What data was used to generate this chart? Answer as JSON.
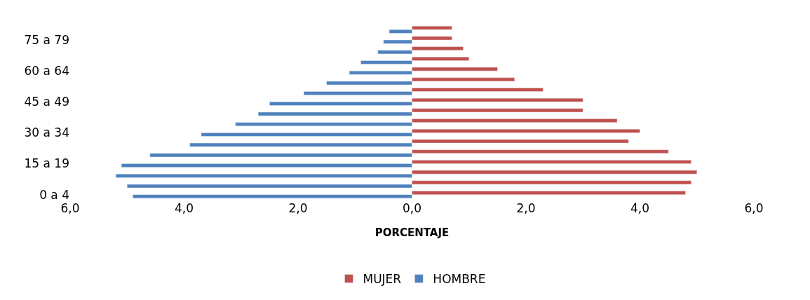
{
  "chart_data": {
    "type": "bar",
    "orientation": "horizontal",
    "xlabel": "PORCENTAJE",
    "categories": [
      null,
      "75 a 79",
      null,
      null,
      "60 a 64",
      null,
      null,
      "45 a 49",
      null,
      null,
      "30 a 34",
      null,
      null,
      "15 a 19",
      null,
      null,
      "0 a 4"
    ],
    "series": [
      {
        "name": "MUJER",
        "color": "#c0504d",
        "values": [
          0.7,
          0.7,
          0.9,
          1.0,
          1.5,
          1.8,
          2.3,
          3.0,
          3.0,
          3.6,
          4.0,
          3.8,
          4.5,
          4.9,
          5.0,
          4.9,
          4.8
        ]
      },
      {
        "name": "HOMBRE",
        "color": "#4f81bd",
        "values": [
          -0.4,
          -0.5,
          -0.6,
          -0.9,
          -1.1,
          -1.5,
          -1.9,
          -2.5,
          -2.7,
          -3.1,
          -3.7,
          -3.9,
          -4.6,
          -5.1,
          -5.2,
          -5.0,
          -4.9
        ]
      }
    ],
    "xlim": [
      -6,
      6
    ],
    "xticks": [
      {
        "value": -6,
        "label": "6,0"
      },
      {
        "value": -4,
        "label": "4,0"
      },
      {
        "value": -2,
        "label": "2,0"
      },
      {
        "value": 0,
        "label": "0,0"
      },
      {
        "value": 2,
        "label": "2,0"
      },
      {
        "value": 4,
        "label": "4,0"
      },
      {
        "value": 6,
        "label": "6,0"
      }
    ],
    "legend": "bottom"
  }
}
